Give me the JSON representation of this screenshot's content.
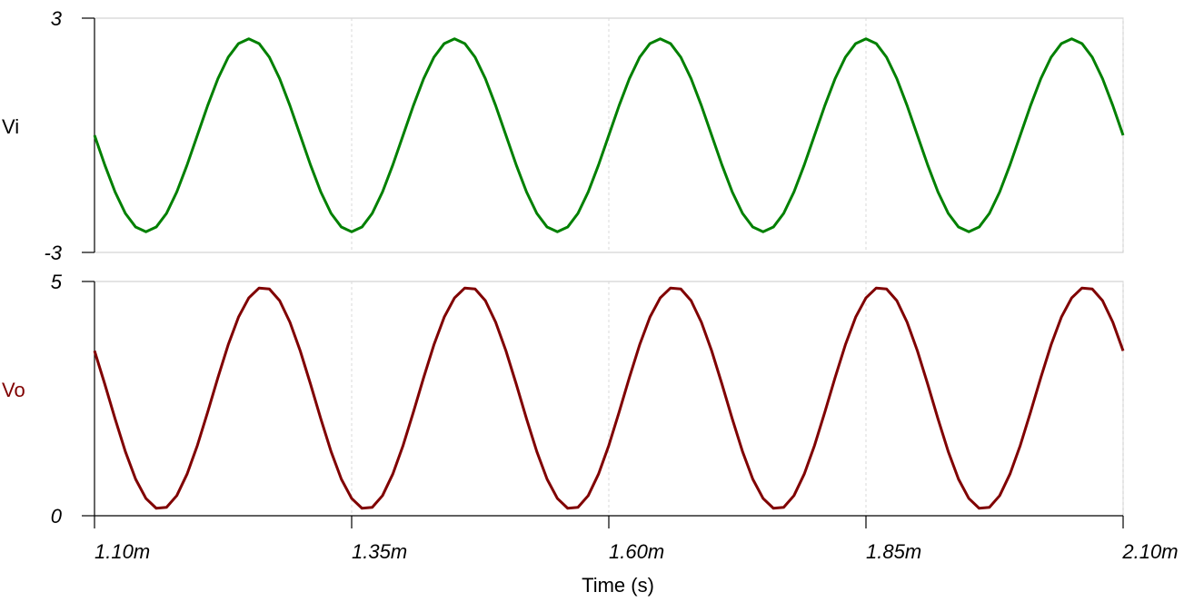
{
  "chart_data": [
    {
      "type": "line",
      "series": [
        {
          "name": "Vi",
          "color": "#008000",
          "label_color": "#000000",
          "values": [
            0,
            -0.76,
            -1.45,
            -2,
            -2.35,
            -2.47,
            -2.35,
            -2,
            -1.45,
            -0.76,
            0,
            0.76,
            1.45,
            2,
            2.35,
            2.47,
            2.35,
            2,
            1.45,
            0.76,
            0,
            -0.76,
            -1.45,
            -2,
            -2.35,
            -2.47,
            -2.35,
            -2,
            -1.45,
            -0.76,
            0,
            0.76,
            1.45,
            2,
            2.35,
            2.47,
            2.35,
            2,
            1.45,
            0.76,
            0,
            -0.76,
            -1.45,
            -2,
            -2.35,
            -2.47,
            -2.35,
            -2,
            -1.45,
            -0.76,
            0,
            0.76,
            1.45,
            2,
            2.35,
            2.47,
            2.35,
            2,
            1.45,
            0.76,
            0,
            -0.76,
            -1.45,
            -2,
            -2.35,
            -2.47,
            -2.35,
            -2,
            -1.45,
            -0.76,
            0,
            0.76,
            1.45,
            2,
            2.35,
            2.47,
            2.35,
            2,
            1.45,
            0.76,
            0,
            -0.76,
            -1.45,
            -2,
            -2.35,
            -2.47,
            -2.35,
            -2,
            -1.45,
            -0.76,
            0,
            0.76,
            1.45,
            2,
            2.35,
            2.47,
            2.35,
            2,
            1.45,
            0.76,
            0
          ]
        }
      ],
      "x": [
        0.0011,
        0.00111,
        0.00112,
        0.00113,
        0.00114,
        0.00115,
        0.00116,
        0.00117,
        0.00118,
        0.00119,
        0.0012,
        0.00121,
        0.00122,
        0.00123,
        0.00124,
        0.00125,
        0.00126,
        0.00127,
        0.00128,
        0.00129,
        0.0013,
        0.00131,
        0.00132,
        0.00133,
        0.00134,
        0.00135,
        0.00136,
        0.00137,
        0.00138,
        0.00139,
        0.0014,
        0.00141,
        0.00142,
        0.00143,
        0.00144,
        0.00145,
        0.00146,
        0.00147,
        0.00148,
        0.00149,
        0.0015,
        0.00151,
        0.00152,
        0.00153,
        0.00154,
        0.00155,
        0.00156,
        0.00157,
        0.00158,
        0.00159,
        0.0016,
        0.00161,
        0.00162,
        0.00163,
        0.00164,
        0.00165,
        0.00166,
        0.00167,
        0.00168,
        0.00169,
        0.0017,
        0.00171,
        0.00172,
        0.00173,
        0.00174,
        0.00175,
        0.00176,
        0.00177,
        0.00178,
        0.00179,
        0.0018,
        0.00181,
        0.00182,
        0.00183,
        0.00184,
        0.00185,
        0.00186,
        0.00187,
        0.00188,
        0.00189,
        0.0019,
        0.00191,
        0.00192,
        0.00193,
        0.00194,
        0.00195,
        0.00196,
        0.00197,
        0.00198,
        0.00199,
        0.002,
        0.00201,
        0.00202,
        0.00203,
        0.00204,
        0.00205,
        0.00206,
        0.00207,
        0.00208,
        0.00209,
        0.0021
      ],
      "xlim": [
        0.0011,
        0.0021
      ],
      "ylim": [
        -3,
        3
      ],
      "yticks": [
        -3,
        3
      ],
      "grid": true
    },
    {
      "type": "line",
      "series": [
        {
          "name": "Vo",
          "color": "#800000",
          "label_color": "#800000",
          "values": [
            3.52,
            2.81,
            2.07,
            1.37,
            0.78,
            0.37,
            0.16,
            0.18,
            0.43,
            0.89,
            1.5,
            2.21,
            2.95,
            3.65,
            4.24,
            4.65,
            4.86,
            4.84,
            4.59,
            4.13,
            3.52,
            2.81,
            2.07,
            1.37,
            0.78,
            0.37,
            0.16,
            0.18,
            0.43,
            0.89,
            1.5,
            2.21,
            2.95,
            3.65,
            4.24,
            4.65,
            4.86,
            4.84,
            4.59,
            4.13,
            3.52,
            2.81,
            2.07,
            1.37,
            0.78,
            0.37,
            0.16,
            0.18,
            0.43,
            0.89,
            1.5,
            2.21,
            2.95,
            3.65,
            4.24,
            4.65,
            4.86,
            4.84,
            4.59,
            4.13,
            3.52,
            2.81,
            2.07,
            1.37,
            0.78,
            0.37,
            0.16,
            0.18,
            0.43,
            0.89,
            1.5,
            2.21,
            2.95,
            3.65,
            4.24,
            4.65,
            4.86,
            4.84,
            4.59,
            4.13,
            3.52,
            2.81,
            2.07,
            1.37,
            0.78,
            0.37,
            0.16,
            0.18,
            0.43,
            0.89,
            1.5,
            2.21,
            2.95,
            3.65,
            4.24,
            4.65,
            4.86,
            4.84,
            4.59,
            4.13,
            3.52
          ]
        }
      ],
      "x": [
        0.0011,
        0.00111,
        0.00112,
        0.00113,
        0.00114,
        0.00115,
        0.00116,
        0.00117,
        0.00118,
        0.00119,
        0.0012,
        0.00121,
        0.00122,
        0.00123,
        0.00124,
        0.00125,
        0.00126,
        0.00127,
        0.00128,
        0.00129,
        0.0013,
        0.00131,
        0.00132,
        0.00133,
        0.00134,
        0.00135,
        0.00136,
        0.00137,
        0.00138,
        0.00139,
        0.0014,
        0.00141,
        0.00142,
        0.00143,
        0.00144,
        0.00145,
        0.00146,
        0.00147,
        0.00148,
        0.00149,
        0.0015,
        0.00151,
        0.00152,
        0.00153,
        0.00154,
        0.00155,
        0.00156,
        0.00157,
        0.00158,
        0.00159,
        0.0016,
        0.00161,
        0.00162,
        0.00163,
        0.00164,
        0.00165,
        0.00166,
        0.00167,
        0.00168,
        0.00169,
        0.0017,
        0.00171,
        0.00172,
        0.00173,
        0.00174,
        0.00175,
        0.00176,
        0.00177,
        0.00178,
        0.00179,
        0.0018,
        0.00181,
        0.00182,
        0.00183,
        0.00184,
        0.00185,
        0.00186,
        0.00187,
        0.00188,
        0.00189,
        0.0019,
        0.00191,
        0.00192,
        0.00193,
        0.00194,
        0.00195,
        0.00196,
        0.00197,
        0.00198,
        0.00199,
        0.002,
        0.00201,
        0.00202,
        0.00203,
        0.00204,
        0.00205,
        0.00206,
        0.00207,
        0.00208,
        0.00209,
        0.0021
      ],
      "xlim": [
        0.0011,
        0.0021
      ],
      "xticks": [
        {
          "value": 0.0011,
          "label": "1.10m"
        },
        {
          "value": 0.00135,
          "label": "1.35m"
        },
        {
          "value": 0.0016,
          "label": "1.60m"
        },
        {
          "value": 0.00185,
          "label": "1.85m"
        },
        {
          "value": 0.0021,
          "label": "2.10m"
        }
      ],
      "x_label": "Time (s)",
      "ylim": [
        0,
        5
      ],
      "yticks": [
        0,
        5
      ],
      "grid": true
    }
  ]
}
